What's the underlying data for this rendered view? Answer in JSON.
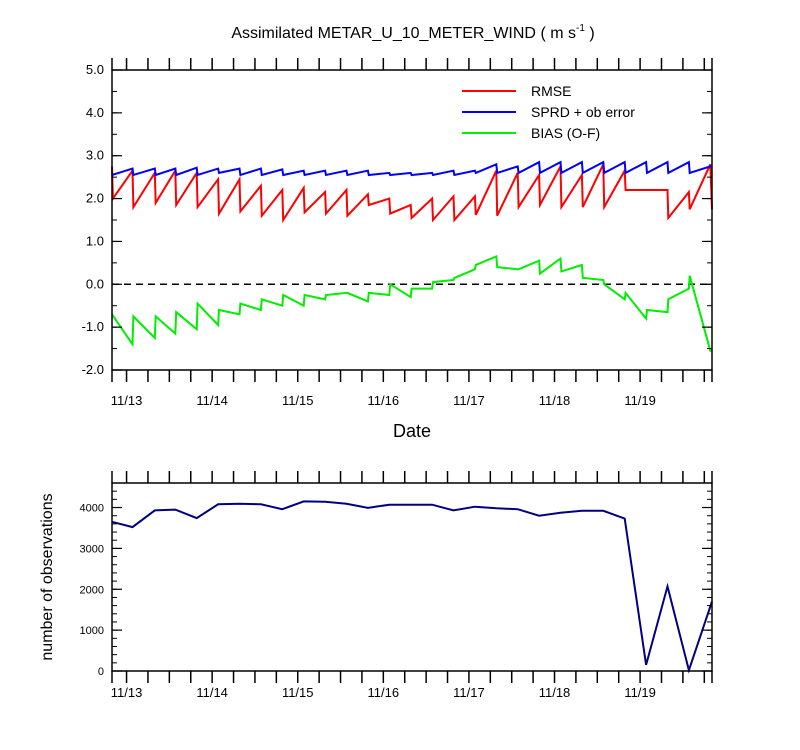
{
  "chart_data": [
    {
      "type": "line",
      "title": "Assimilated METAR_U_10_METER_WIND",
      "title_units": "( m s",
      "title_units_sup": "-1",
      "title_units_close": " )",
      "xlabel": "Date",
      "ylabel": "",
      "ylim": [
        -2.0,
        5.0
      ],
      "xlim": [
        12.83,
        19.84
      ],
      "yticks": [
        "-2.0",
        "-1.0",
        "0.0",
        "1.0",
        "2.0",
        "3.0",
        "4.0",
        "5.0"
      ],
      "yticks_values": [
        -2,
        -1,
        0,
        1,
        2,
        3,
        4,
        5
      ],
      "xticks": [
        "11/13",
        "11/14",
        "11/15",
        "11/16",
        "11/17",
        "11/18",
        "11/19"
      ],
      "xticks_values": [
        13,
        14,
        15,
        16,
        17,
        18,
        19
      ],
      "reference_line": 0,
      "legend_position": "top-right",
      "series": [
        {
          "name": "RMSE",
          "color": "#ff0000",
          "x": [
            12.83,
            12.84,
            13.07,
            13.08,
            13.33,
            13.34,
            13.57,
            13.58,
            13.82,
            13.83,
            14.07,
            14.08,
            14.32,
            14.33,
            14.57,
            14.58,
            14.82,
            14.83,
            15.07,
            15.08,
            15.32,
            15.33,
            15.57,
            15.58,
            15.82,
            15.83,
            16.07,
            16.08,
            16.32,
            16.33,
            16.57,
            16.58,
            16.82,
            16.83,
            17.07,
            17.08,
            17.32,
            17.33,
            17.57,
            17.58,
            17.82,
            17.83,
            18.07,
            18.08,
            18.32,
            18.33,
            18.57,
            18.58,
            18.82,
            18.83,
            19.07,
            19.08,
            19.32,
            19.33,
            19.57,
            19.58,
            19.82,
            19.84
          ],
          "y": [
            2.75,
            2.0,
            2.65,
            1.8,
            2.6,
            1.9,
            2.65,
            1.85,
            2.6,
            1.8,
            2.45,
            1.65,
            2.45,
            1.7,
            2.3,
            1.6,
            2.2,
            1.5,
            2.25,
            1.68,
            2.15,
            1.65,
            2.2,
            1.6,
            2.1,
            1.85,
            2.0,
            1.65,
            1.85,
            1.55,
            2.0,
            1.5,
            2.05,
            1.5,
            2.05,
            1.62,
            2.65,
            1.6,
            2.6,
            1.8,
            2.55,
            1.85,
            2.75,
            1.8,
            2.55,
            1.8,
            2.8,
            1.8,
            2.65,
            2.2,
            2.2,
            2.2,
            2.2,
            1.55,
            2.15,
            1.75,
            2.8,
            1.75
          ]
        },
        {
          "name": "SPRD + ob error",
          "color": "#0000ff",
          "x": [
            12.83,
            13.07,
            13.08,
            13.33,
            13.34,
            13.57,
            13.58,
            13.82,
            13.83,
            14.07,
            14.08,
            14.32,
            14.33,
            14.57,
            14.58,
            14.82,
            14.83,
            15.07,
            15.08,
            15.32,
            15.33,
            15.57,
            15.58,
            15.82,
            15.83,
            16.07,
            16.08,
            16.32,
            16.33,
            16.57,
            16.58,
            16.82,
            16.83,
            17.07,
            17.08,
            17.32,
            17.33,
            17.57,
            17.58,
            17.82,
            17.83,
            18.07,
            18.08,
            18.32,
            18.33,
            18.57,
            18.58,
            18.82,
            18.83,
            19.07,
            19.08,
            19.32,
            19.33,
            19.57,
            19.58,
            19.82,
            19.84
          ],
          "y": [
            2.55,
            2.7,
            2.55,
            2.7,
            2.55,
            2.7,
            2.55,
            2.72,
            2.55,
            2.7,
            2.6,
            2.7,
            2.55,
            2.7,
            2.55,
            2.68,
            2.55,
            2.65,
            2.55,
            2.65,
            2.55,
            2.65,
            2.55,
            2.65,
            2.55,
            2.6,
            2.55,
            2.6,
            2.55,
            2.6,
            2.55,
            2.65,
            2.55,
            2.65,
            2.6,
            2.8,
            2.6,
            2.75,
            2.6,
            2.85,
            2.6,
            2.85,
            2.6,
            2.85,
            2.6,
            2.85,
            2.6,
            2.85,
            2.6,
            2.85,
            2.6,
            2.85,
            2.6,
            2.85,
            2.6,
            2.75,
            2.75
          ]
        },
        {
          "name": "BIAS (O-F)",
          "color": "#00ee00",
          "x": [
            12.83,
            13.07,
            13.08,
            13.33,
            13.34,
            13.57,
            13.58,
            13.82,
            13.83,
            14.07,
            14.08,
            14.32,
            14.33,
            14.57,
            14.58,
            14.82,
            14.83,
            15.07,
            15.08,
            15.32,
            15.33,
            15.57,
            15.58,
            15.82,
            15.83,
            16.07,
            16.08,
            16.32,
            16.33,
            16.57,
            16.58,
            16.82,
            16.83,
            17.07,
            17.08,
            17.32,
            17.33,
            17.57,
            17.58,
            17.82,
            17.83,
            18.07,
            18.08,
            18.32,
            18.33,
            18.57,
            18.58,
            18.82,
            18.83,
            19.07,
            19.08,
            19.32,
            19.33,
            19.57,
            19.58,
            19.82,
            19.84
          ],
          "y": [
            -0.7,
            -1.4,
            -0.75,
            -1.25,
            -0.75,
            -1.15,
            -0.65,
            -1.05,
            -0.45,
            -0.95,
            -0.6,
            -0.7,
            -0.45,
            -0.6,
            -0.35,
            -0.5,
            -0.25,
            -0.5,
            -0.25,
            -0.35,
            -0.25,
            -0.2,
            -0.2,
            -0.4,
            -0.2,
            -0.25,
            0.0,
            -0.3,
            -0.1,
            -0.1,
            0.05,
            0.1,
            0.15,
            0.35,
            0.45,
            0.65,
            0.4,
            0.35,
            0.35,
            0.55,
            0.25,
            0.6,
            0.3,
            0.45,
            0.15,
            0.1,
            0.0,
            -0.35,
            -0.2,
            -0.8,
            -0.6,
            -0.65,
            -0.35,
            -0.1,
            0.2,
            -1.55,
            -1.55
          ]
        }
      ]
    },
    {
      "type": "line",
      "title": "",
      "xlabel": "",
      "ylabel": "number of observations",
      "ylim": [
        0,
        4600
      ],
      "xlim": [
        12.83,
        19.84
      ],
      "yticks": [
        "0",
        "1000",
        "2000",
        "3000",
        "4000"
      ],
      "yticks_values": [
        0,
        1000,
        2000,
        3000,
        4000
      ],
      "xticks": [
        "11/13",
        "11/14",
        "11/15",
        "11/16",
        "11/17",
        "11/18",
        "11/19"
      ],
      "xticks_values": [
        13,
        14,
        15,
        16,
        17,
        18,
        19
      ],
      "series": [
        {
          "color": "#000080",
          "x": [
            12.83,
            13.07,
            13.33,
            13.57,
            13.82,
            14.07,
            14.32,
            14.57,
            14.82,
            15.07,
            15.32,
            15.57,
            15.82,
            16.07,
            16.32,
            16.57,
            16.82,
            17.07,
            17.32,
            17.57,
            17.82,
            18.07,
            18.32,
            18.57,
            18.82,
            19.07,
            19.32,
            19.57,
            19.84
          ],
          "y": [
            3650,
            3520,
            3930,
            3950,
            3740,
            4080,
            4090,
            4080,
            3960,
            4150,
            4140,
            4090,
            3990,
            4070,
            4070,
            4070,
            3930,
            4020,
            3980,
            3960,
            3800,
            3870,
            3920,
            3920,
            3730,
            150,
            2070,
            20,
            1700
          ]
        }
      ]
    }
  ]
}
